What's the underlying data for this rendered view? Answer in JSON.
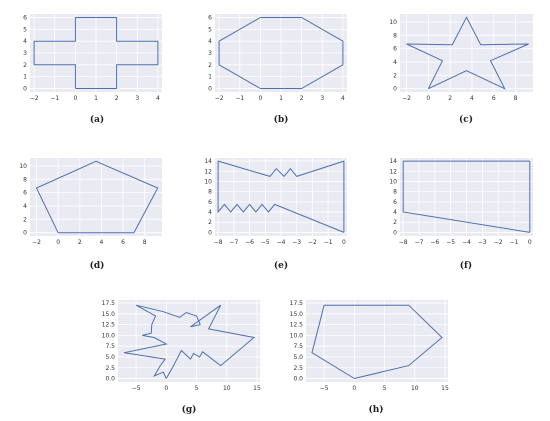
{
  "panels": [
    {
      "id": "a",
      "caption": "(a)",
      "x_ticks": [
        "−2",
        "−1",
        "0",
        "1",
        "2",
        "3",
        "4"
      ],
      "y_ticks": [
        "0",
        "1",
        "2",
        "3",
        "4",
        "5",
        "6"
      ],
      "xlim": [
        -2.2,
        4.2
      ],
      "ylim": [
        -0.3,
        6.3
      ],
      "polygon": [
        [
          0,
          0
        ],
        [
          2,
          0
        ],
        [
          2,
          2
        ],
        [
          4,
          2
        ],
        [
          4,
          4
        ],
        [
          2,
          4
        ],
        [
          2,
          6
        ],
        [
          0,
          6
        ],
        [
          0,
          4
        ],
        [
          -2,
          4
        ],
        [
          -2,
          2
        ],
        [
          0,
          2
        ],
        [
          0,
          0
        ]
      ]
    },
    {
      "id": "b",
      "caption": "(b)",
      "x_ticks": [
        "−2",
        "−1",
        "0",
        "1",
        "2",
        "3",
        "4"
      ],
      "y_ticks": [
        "0",
        "1",
        "2",
        "3",
        "4",
        "5",
        "6"
      ],
      "xlim": [
        -2.2,
        4.2
      ],
      "ylim": [
        -0.3,
        6.3
      ],
      "polygon": [
        [
          0,
          0
        ],
        [
          2,
          0
        ],
        [
          4,
          2
        ],
        [
          4,
          4
        ],
        [
          2,
          6
        ],
        [
          0,
          6
        ],
        [
          -2,
          4
        ],
        [
          -2,
          2
        ],
        [
          0,
          0
        ]
      ]
    },
    {
      "id": "c",
      "caption": "(c)",
      "x_ticks": [
        "−2",
        "0",
        "2",
        "4",
        "6",
        "8"
      ],
      "y_ticks": [
        "0",
        "2",
        "4",
        "6",
        "8",
        "10"
      ],
      "xlim": [
        -2.6,
        9.6
      ],
      "ylim": [
        -0.5,
        11.2
      ],
      "polygon": [
        [
          0,
          0
        ],
        [
          3.5,
          2.7
        ],
        [
          7,
          0
        ],
        [
          5.7,
          4.2
        ],
        [
          9.2,
          6.7
        ],
        [
          4.8,
          6.6
        ],
        [
          3.5,
          10.7
        ],
        [
          2.2,
          6.6
        ],
        [
          -2,
          6.7
        ],
        [
          1.3,
          4.2
        ],
        [
          0,
          0
        ]
      ]
    },
    {
      "id": "d",
      "caption": "(d)",
      "x_ticks": [
        "−2",
        "0",
        "2",
        "4",
        "6",
        "8"
      ],
      "y_ticks": [
        "0",
        "2",
        "4",
        "6",
        "8",
        "10"
      ],
      "xlim": [
        -2.6,
        9.6
      ],
      "ylim": [
        -0.5,
        11.2
      ],
      "polygon": [
        [
          0,
          0
        ],
        [
          7,
          0
        ],
        [
          9.2,
          6.7
        ],
        [
          3.5,
          10.7
        ],
        [
          -2,
          6.7
        ],
        [
          0,
          0
        ]
      ]
    },
    {
      "id": "e",
      "caption": "(e)",
      "x_ticks": [
        "−8",
        "−7",
        "−6",
        "−5",
        "−4",
        "−3",
        "−2",
        "−1",
        "0"
      ],
      "y_ticks": [
        "0",
        "2",
        "4",
        "6",
        "8",
        "10",
        "12",
        "14"
      ],
      "xlim": [
        -8.2,
        0.2
      ],
      "ylim": [
        -0.7,
        14.6
      ],
      "polygon": [
        [
          0,
          0
        ],
        [
          0,
          14
        ],
        [
          -3,
          11
        ],
        [
          -3.4,
          12.5
        ],
        [
          -3.8,
          11
        ],
        [
          -4.3,
          12.5
        ],
        [
          -4.7,
          11
        ],
        [
          -8,
          14
        ],
        [
          -8,
          4
        ],
        [
          -7.6,
          5.5
        ],
        [
          -7.2,
          4
        ],
        [
          -6.8,
          5.5
        ],
        [
          -6.4,
          4
        ],
        [
          -6.0,
          5.5
        ],
        [
          -5.6,
          4
        ],
        [
          -5.2,
          5.5
        ],
        [
          -4.8,
          4
        ],
        [
          -4.4,
          5.5
        ],
        [
          0,
          0
        ]
      ]
    },
    {
      "id": "f",
      "caption": "(f)",
      "x_ticks": [
        "−8",
        "−7",
        "−6",
        "−5",
        "−4",
        "−3",
        "−2",
        "−1",
        "0"
      ],
      "y_ticks": [
        "0",
        "2",
        "4",
        "6",
        "8",
        "10",
        "12",
        "14"
      ],
      "xlim": [
        -8.2,
        0.2
      ],
      "ylim": [
        -0.7,
        14.6
      ],
      "polygon": [
        [
          0,
          0
        ],
        [
          0,
          14
        ],
        [
          -8,
          14
        ],
        [
          -8,
          4
        ],
        [
          0,
          0
        ]
      ]
    },
    {
      "id": "g",
      "caption": "(g)",
      "x_ticks": [
        "−5",
        "0",
        "5",
        "10",
        "15"
      ],
      "y_ticks": [
        "0.0",
        "2.5",
        "5.0",
        "7.5",
        "10.0",
        "12.5",
        "15.0",
        "17.5"
      ],
      "xlim": [
        -8,
        15.5
      ],
      "ylim": [
        -0.8,
        18.2
      ],
      "polygon": [
        [
          0,
          0
        ],
        [
          -0.5,
          1.5
        ],
        [
          -2,
          0.6
        ],
        [
          -1,
          3
        ],
        [
          -0.2,
          4.5
        ],
        [
          -7,
          6
        ],
        [
          0,
          8
        ],
        [
          -2,
          9.5
        ],
        [
          -4,
          10
        ],
        [
          -2.5,
          10.5
        ],
        [
          -2.4,
          12.5
        ],
        [
          -1.8,
          14.5
        ],
        [
          -5,
          17
        ],
        [
          -0.5,
          15.5
        ],
        [
          2.2,
          14.2
        ],
        [
          3.3,
          15.3
        ],
        [
          5,
          14.5
        ],
        [
          5.6,
          12.5
        ],
        [
          4,
          12
        ],
        [
          9,
          17
        ],
        [
          7,
          11.5
        ],
        [
          14.5,
          9.5
        ],
        [
          9,
          3
        ],
        [
          6,
          6.2
        ],
        [
          5.5,
          5
        ],
        [
          4.5,
          5.8
        ],
        [
          4,
          4.5
        ],
        [
          2.5,
          6.5
        ],
        [
          1,
          2.5
        ],
        [
          0,
          0
        ]
      ]
    },
    {
      "id": "h",
      "caption": "(h)",
      "x_ticks": [
        "−5",
        "0",
        "5",
        "10",
        "15"
      ],
      "y_ticks": [
        "0.0",
        "2.5",
        "5.0",
        "7.5",
        "10.0",
        "12.5",
        "15.0",
        "17.5"
      ],
      "xlim": [
        -8,
        15.5
      ],
      "ylim": [
        -0.8,
        18.2
      ],
      "polygon": [
        [
          0,
          0
        ],
        [
          9,
          3
        ],
        [
          14.5,
          9.5
        ],
        [
          9,
          17
        ],
        [
          -5,
          17
        ],
        [
          -7,
          6
        ],
        [
          0,
          0
        ]
      ]
    }
  ]
}
